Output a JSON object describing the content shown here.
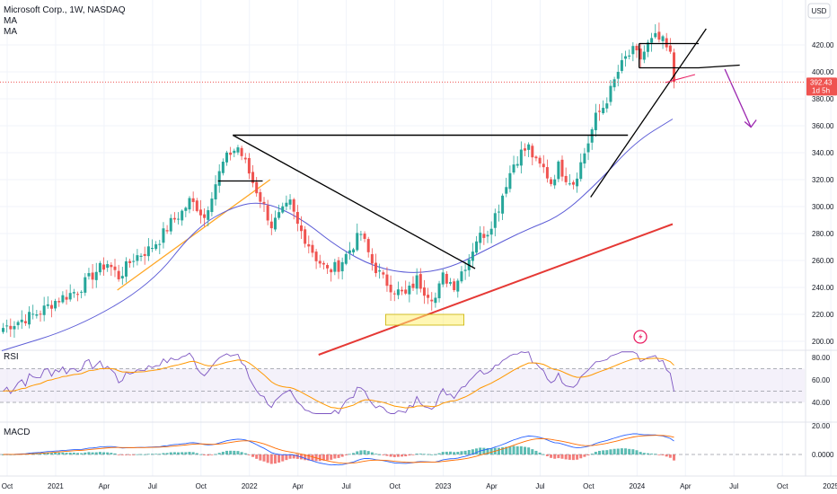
{
  "header": {
    "symbol": "Microsoft Corp., 1W, NASDAQ",
    "ma1": "MA",
    "ma2": "MA",
    "currency": "USD"
  },
  "price_tag": {
    "value": "392.43",
    "countdown": "1d 5h"
  },
  "panes": {
    "rsi_label": "RSI",
    "macd_label": "MACD"
  },
  "colors": {
    "up": "#26a69a",
    "down": "#ef5350",
    "ma_blue": "#5b5bd6",
    "ma_red": "#e53935",
    "rsi_line": "#7e57c2",
    "rsi_signal": "#ff9800",
    "rsi_band": "#ede7f6",
    "macd_line": "#2962ff",
    "macd_signal": "#ff6d00",
    "trend": "#000000",
    "projection": "#9c27b0",
    "orange_line": "#ffa726",
    "highlight": "#fff176",
    "price_line": "#ef5350"
  },
  "icons": {
    "lightning": "lightning-icon"
  },
  "chart_data": [
    {
      "type": "candlestick",
      "title": "Microsoft Corp., 1W, NASDAQ",
      "ylim": [
        190,
        440
      ],
      "y_ticks": [
        "200.00",
        "220.00",
        "240.00",
        "260.00",
        "280.00",
        "300.00",
        "320.00",
        "340.00",
        "360.00",
        "380.00",
        "400.00",
        "420.00"
      ],
      "x_ticks": [
        "Oct",
        "2021",
        "Apr",
        "Jul",
        "Oct",
        "2022",
        "Apr",
        "Jul",
        "Oct",
        "2023",
        "Apr",
        "Jul",
        "Oct",
        "2024",
        "Apr",
        "Jul",
        "Oct",
        "2025"
      ],
      "price_anchors": [
        [
          0,
          210
        ],
        [
          5,
          216
        ],
        [
          10,
          222
        ],
        [
          14,
          230
        ],
        [
          20,
          238
        ],
        [
          25,
          252
        ],
        [
          28,
          258
        ],
        [
          31,
          248
        ],
        [
          35,
          262
        ],
        [
          39,
          268
        ],
        [
          42,
          276
        ],
        [
          45,
          288
        ],
        [
          48,
          296
        ],
        [
          50,
          304
        ],
        [
          52,
          300
        ],
        [
          54,
          292
        ],
        [
          56,
          310
        ],
        [
          59,
          332
        ],
        [
          61,
          340
        ],
        [
          63,
          344
        ],
        [
          65,
          332
        ],
        [
          67,
          318
        ],
        [
          70,
          300
        ],
        [
          72,
          286
        ],
        [
          75,
          296
        ],
        [
          77,
          302
        ],
        [
          79,
          286
        ],
        [
          82,
          272
        ],
        [
          84,
          262
        ],
        [
          87,
          252
        ],
        [
          90,
          256
        ],
        [
          93,
          268
        ],
        [
          96,
          280
        ],
        [
          99,
          258
        ],
        [
          102,
          246
        ],
        [
          105,
          238
        ],
        [
          108,
          234
        ],
        [
          111,
          246
        ],
        [
          113,
          238
        ],
        [
          116,
          232
        ],
        [
          118,
          248
        ],
        [
          121,
          242
        ],
        [
          123,
          252
        ],
        [
          125,
          262
        ],
        [
          127,
          276
        ],
        [
          130,
          282
        ],
        [
          133,
          300
        ],
        [
          135,
          318
        ],
        [
          137,
          332
        ],
        [
          139,
          340
        ],
        [
          141,
          344
        ],
        [
          143,
          332
        ],
        [
          145,
          328
        ],
        [
          147,
          318
        ],
        [
          149,
          330
        ],
        [
          151,
          322
        ],
        [
          153,
          318
        ],
        [
          155,
          332
        ],
        [
          157,
          348
        ],
        [
          159,
          366
        ],
        [
          161,
          374
        ],
        [
          163,
          386
        ],
        [
          165,
          400
        ],
        [
          167,
          410
        ],
        [
          169,
          415
        ],
        [
          171,
          410
        ],
        [
          173,
          420
        ],
        [
          175,
          425
        ],
        [
          177,
          422
        ],
        [
          179,
          412
        ],
        [
          180,
          392.43
        ]
      ],
      "ma_blue": [
        [
          0,
          193
        ],
        [
          20,
          210
        ],
        [
          40,
          242
        ],
        [
          52,
          284
        ],
        [
          62,
          300
        ],
        [
          70,
          304
        ],
        [
          80,
          292
        ],
        [
          90,
          270
        ],
        [
          100,
          255
        ],
        [
          110,
          250
        ],
        [
          120,
          254
        ],
        [
          130,
          268
        ],
        [
          140,
          282
        ],
        [
          150,
          293
        ],
        [
          160,
          318
        ],
        [
          170,
          348
        ],
        [
          180,
          365
        ]
      ],
      "ma_red": [
        [
          85,
          190
        ],
        [
          180,
          287
        ]
      ],
      "annotations": {
        "trend_upper": [
          [
            62,
            353
          ],
          [
            168,
            353
          ]
        ],
        "trend_diag_down": [
          [
            62,
            353
          ],
          [
            127,
            254
          ]
        ],
        "support_2022": [
          [
            58,
            319
          ],
          [
            70,
            319
          ]
        ],
        "orange_trend": [
          [
            31,
            238
          ],
          [
            72,
            320
          ]
        ],
        "triangle_box": [
          [
            103,
            212
          ],
          [
            124,
            220
          ]
        ],
        "rising_trend": [
          [
            158,
            307
          ],
          [
            189,
            432
          ]
        ],
        "top_box_upper": [
          [
            171,
            421
          ],
          [
            187,
            421
          ]
        ],
        "top_box_lower": [
          [
            171,
            403
          ],
          [
            187,
            403
          ],
          [
            198,
            405
          ]
        ],
        "projection_arrow": [
          [
            194,
            402
          ],
          [
            201,
            359
          ]
        ],
        "small_pink": [
          [
            178,
            392
          ],
          [
            186,
            398
          ]
        ]
      },
      "current_price": 392.43
    },
    {
      "type": "line",
      "title": "RSI",
      "ylim": [
        30,
        85
      ],
      "y_ticks": [
        "40.00",
        "60.00",
        "80.00"
      ],
      "band": [
        40,
        70
      ],
      "mid": 50
    },
    {
      "type": "bar",
      "title": "MACD",
      "ylim": [
        -8,
        25
      ],
      "y_ticks": [
        "0.0000",
        "20.00"
      ]
    }
  ]
}
